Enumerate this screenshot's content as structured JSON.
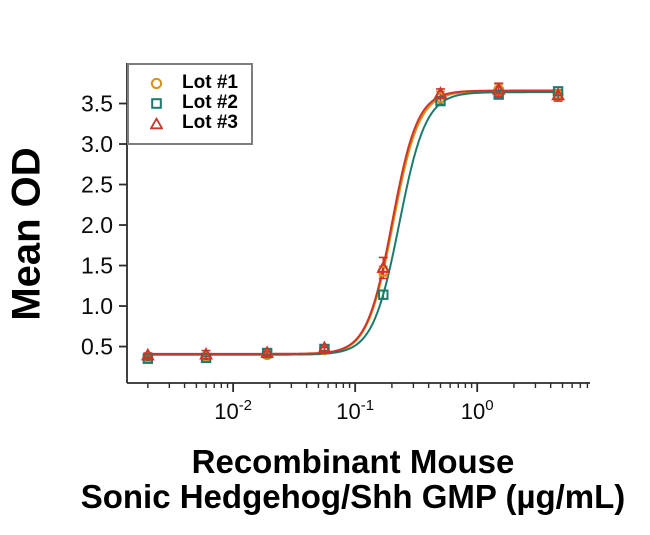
{
  "figure": {
    "xlabel_line1": "Recombinant Mouse",
    "xlabel_line2": "Sonic Hedgehog/Shh GMP (µg/mL)"
  },
  "chart_data": {
    "type": "scatter",
    "subtype": "dose-response-4PL",
    "title": "",
    "xlabel": "Recombinant Mouse Sonic Hedgehog/Shh GMP (µg/mL)",
    "ylabel": "Mean OD",
    "x_scale": "log",
    "xlim": [
      0.00135,
      8.4
    ],
    "ylim": [
      0.05,
      4.0
    ],
    "grid": false,
    "legend_position": "upper-left",
    "legend_border_color": "#7d7d7d",
    "axis_color": "#2b2b2b",
    "y_ticks": [
      0.5,
      1.0,
      1.5,
      2.0,
      2.5,
      3.0,
      3.5
    ],
    "x_major_ticks": [
      {
        "value": 0.01,
        "label_base": "10",
        "label_exp": "-2"
      },
      {
        "value": 0.1,
        "label_base": "10",
        "label_exp": "-1"
      },
      {
        "value": 1.0,
        "label_base": "10",
        "label_exp": "0"
      }
    ],
    "doses": [
      0.002,
      0.006,
      0.019,
      0.056,
      0.17,
      0.5,
      1.5,
      4.6
    ],
    "series": [
      {
        "name": "Lot #1",
        "marker": "circle",
        "color": "#D8921C",
        "values": [
          0.36,
          0.37,
          0.4,
          0.46,
          1.43,
          3.57,
          3.67,
          3.61
        ],
        "errors": [
          0.02,
          0.02,
          0.02,
          0.03,
          0.06,
          0.08,
          0.07,
          0.04
        ],
        "fit": {
          "bottom": 0.4,
          "top": 3.65,
          "ec50": 0.205,
          "hill": 4.1
        }
      },
      {
        "name": "Lot #2",
        "marker": "square",
        "color": "#1B7B6D",
        "values": [
          0.35,
          0.36,
          0.42,
          0.47,
          1.14,
          3.53,
          3.61,
          3.65
        ],
        "errors": [
          0.02,
          0.02,
          0.02,
          0.02,
          0.05,
          0.04,
          0.04,
          0.05
        ],
        "fit": {
          "bottom": 0.4,
          "top": 3.64,
          "ec50": 0.23,
          "hill": 4.0
        }
      },
      {
        "name": "Lot #3",
        "marker": "triangle",
        "color": "#CE3529",
        "values": [
          0.39,
          0.4,
          0.42,
          0.48,
          1.47,
          3.62,
          3.67,
          3.6
        ],
        "errors": [
          0.03,
          0.05,
          0.03,
          0.04,
          0.13,
          0.06,
          0.08,
          0.07
        ],
        "fit": {
          "bottom": 0.41,
          "top": 3.66,
          "ec50": 0.201,
          "hill": 4.2
        }
      }
    ],
    "curve_x_range": [
      0.002,
      4.6
    ]
  }
}
